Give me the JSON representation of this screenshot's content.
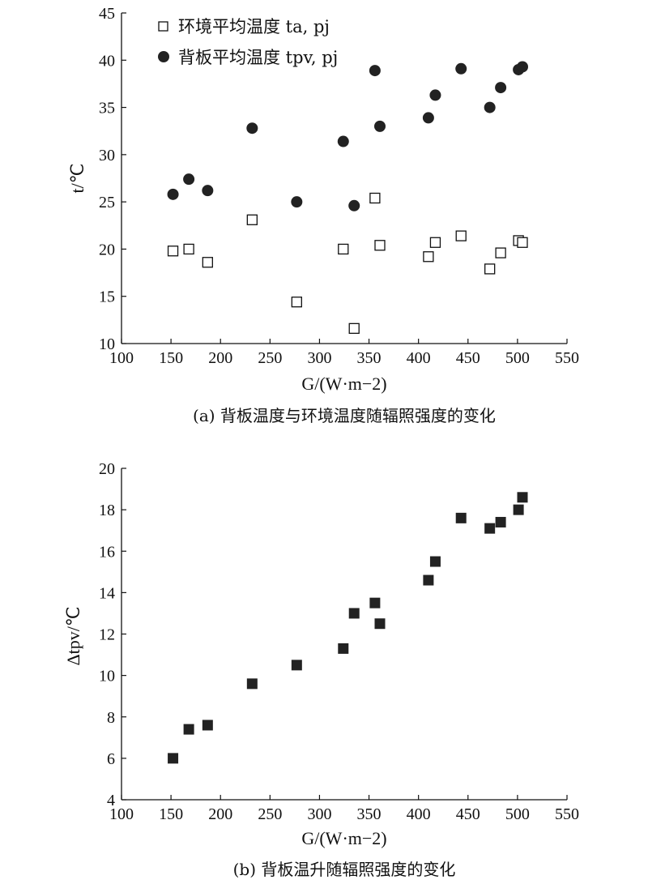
{
  "chart_data": [
    {
      "type": "scatter",
      "caption": "(a) 背板温度与环境温度随辐照强度的变化",
      "xlabel": "G/(W·m−2)",
      "ylabel": "t/℃",
      "xlim": [
        100,
        550
      ],
      "ylim": [
        10,
        45
      ],
      "xticks": [
        100,
        150,
        200,
        250,
        300,
        350,
        400,
        450,
        500,
        550
      ],
      "yticks": [
        10,
        15,
        20,
        25,
        30,
        35,
        40,
        45
      ],
      "legend_position": "top-left",
      "series": [
        {
          "name": "环境平均温度 ta, pj",
          "marker": "open-square",
          "x": [
            152,
            168,
            187,
            232,
            277,
            324,
            335,
            356,
            361,
            410,
            417,
            443,
            472,
            483,
            501,
            505
          ],
          "y": [
            19.8,
            20.0,
            18.6,
            23.1,
            14.4,
            20.0,
            11.6,
            25.4,
            20.4,
            19.2,
            20.7,
            21.4,
            17.9,
            19.6,
            20.9,
            20.7
          ]
        },
        {
          "name": "背板平均温度 tpv, pj",
          "marker": "filled-circle",
          "x": [
            152,
            168,
            187,
            232,
            277,
            324,
            335,
            356,
            361,
            410,
            417,
            443,
            472,
            483,
            501,
            505
          ],
          "y": [
            25.8,
            27.4,
            26.2,
            32.8,
            25.0,
            31.4,
            24.6,
            38.9,
            33.0,
            33.9,
            36.3,
            39.1,
            35.0,
            37.1,
            39.0,
            39.3
          ]
        }
      ]
    },
    {
      "type": "scatter",
      "caption": "(b) 背板温升随辐照强度的变化",
      "xlabel": "G/(W·m−2)",
      "ylabel": "Δtpv/℃",
      "xlim": [
        100,
        550
      ],
      "ylim": [
        4,
        20
      ],
      "xticks": [
        100,
        150,
        200,
        250,
        300,
        350,
        400,
        450,
        500,
        550
      ],
      "yticks": [
        4,
        6,
        8,
        10,
        12,
        14,
        16,
        18,
        20
      ],
      "series": [
        {
          "name": "",
          "marker": "filled-square",
          "x": [
            152,
            168,
            187,
            232,
            277,
            324,
            335,
            356,
            361,
            410,
            417,
            443,
            472,
            483,
            501,
            505
          ],
          "y": [
            6.0,
            7.4,
            7.6,
            9.6,
            10.5,
            11.3,
            13.0,
            13.5,
            12.5,
            14.6,
            15.5,
            17.6,
            17.1,
            17.4,
            18.0,
            18.6
          ]
        }
      ]
    }
  ]
}
